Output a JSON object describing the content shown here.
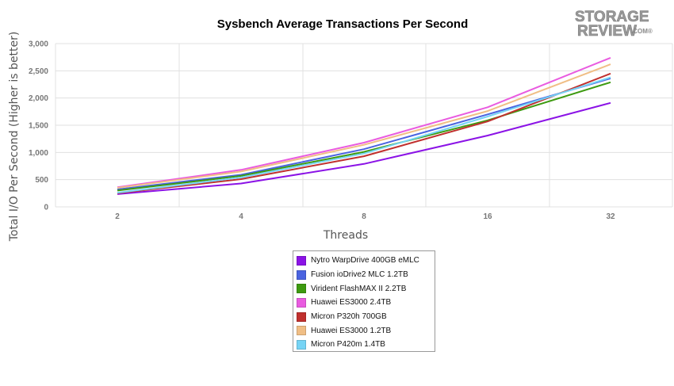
{
  "chart_data": {
    "type": "line",
    "title": "Sysbench Average Transactions Per Second",
    "xlabel": "Threads",
    "ylabel": "Total I/O Per Second (Higher is better)",
    "categories": [
      "2",
      "4",
      "8",
      "16",
      "32"
    ],
    "ylim": [
      0,
      3000
    ],
    "yticks": [
      0,
      500,
      1000,
      1500,
      2000,
      2500,
      3000
    ],
    "ytick_labels": [
      "0",
      "500",
      "1,000",
      "1,500",
      "2,000",
      "2,500",
      "3,000"
    ],
    "grid": true,
    "legend_position": "bottom-center",
    "series": [
      {
        "name": "Nytro WarpDrive 400GB eMLC",
        "color": "#8b13e6",
        "values": [
          235,
          430,
          790,
          1310,
          1910
        ]
      },
      {
        "name": "Fusion ioDrive2 MLC 1.2TB",
        "color": "#4a63e0",
        "values": [
          320,
          590,
          1060,
          1700,
          2360
        ]
      },
      {
        "name": "Virident FlashMAX II 2.2TB",
        "color": "#3d9a10",
        "values": [
          300,
          570,
          1010,
          1590,
          2290
        ]
      },
      {
        "name": "Huawei ES3000 2.4TB",
        "color": "#e95be0",
        "values": [
          360,
          680,
          1180,
          1830,
          2740
        ]
      },
      {
        "name": "Micron P320h 700GB",
        "color": "#c0302e",
        "values": [
          250,
          510,
          930,
          1570,
          2450
        ]
      },
      {
        "name": "Huawei ES3000 1.2TB",
        "color": "#f0be85",
        "values": [
          350,
          650,
          1140,
          1760,
          2620
        ]
      },
      {
        "name": "Micron P420m 1.4TB",
        "color": "#76d4f5",
        "values": [
          260,
          540,
          980,
          1660,
          2380
        ]
      }
    ]
  },
  "logo": {
    "line1": "STORAGE",
    "line2": "REVIEW",
    "suffix": ".COM®"
  }
}
